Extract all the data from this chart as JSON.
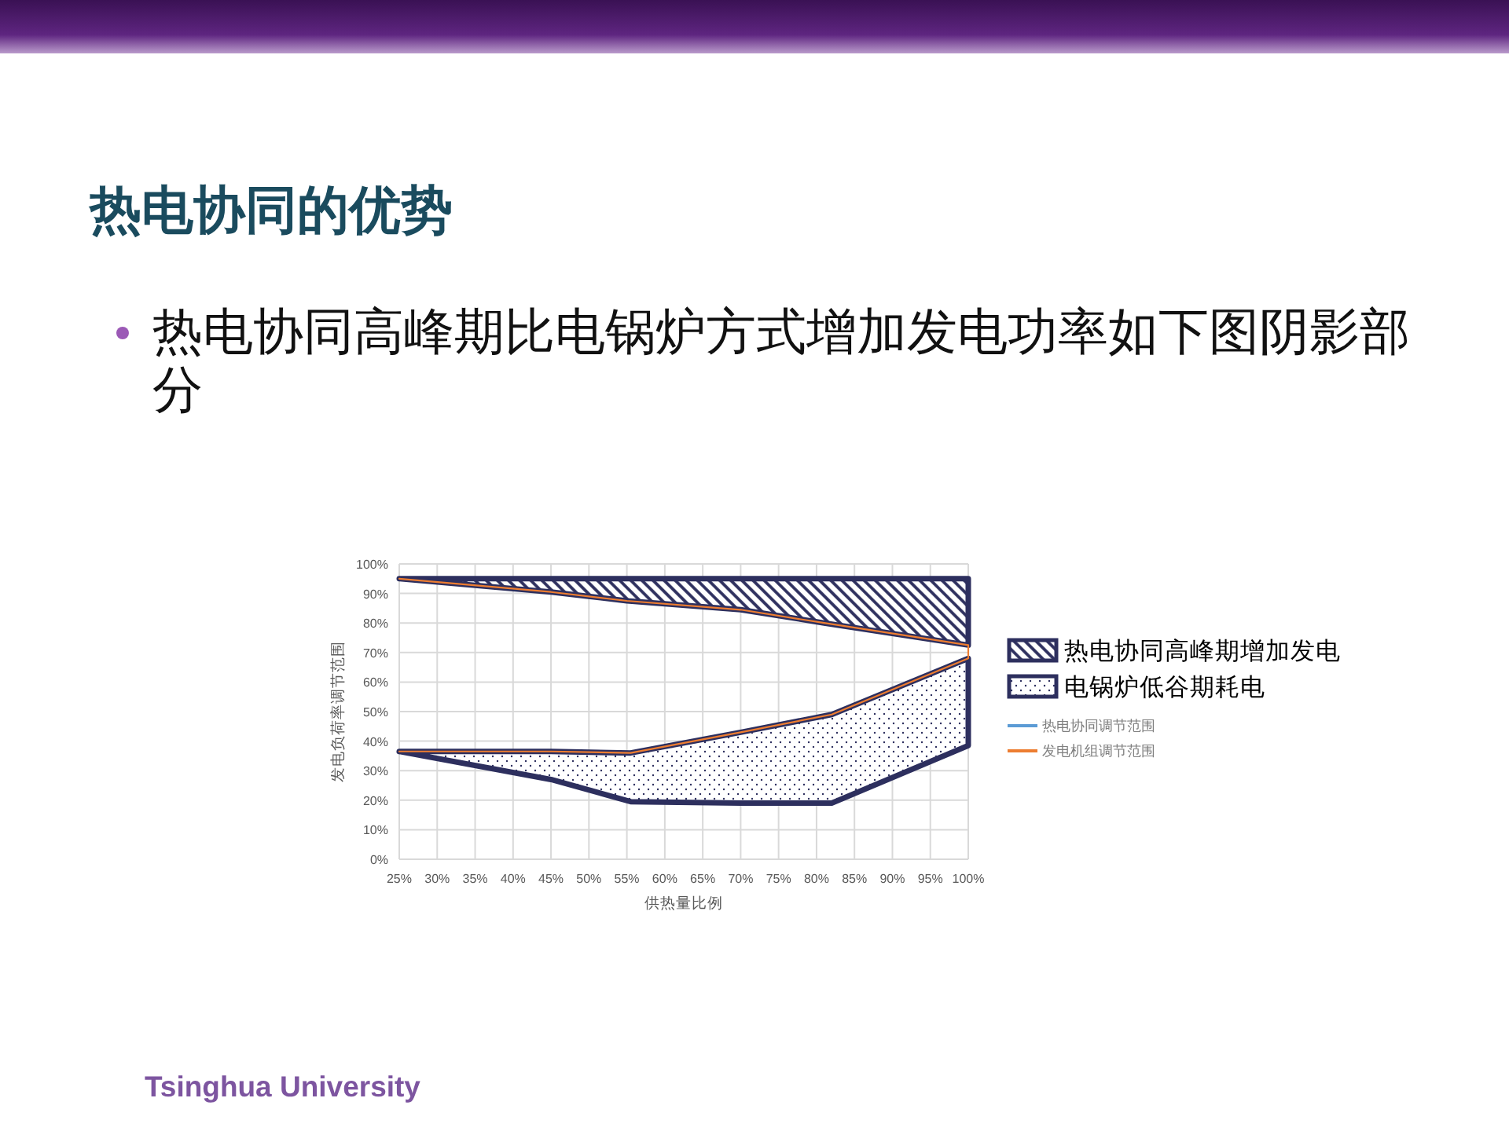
{
  "chart_data": {
    "type": "area",
    "title": "热电协同的优势",
    "subtitle": "热电协同高峰期比电锅炉方式增加发电功率如下图阴影部分",
    "xlabel": "供热量比例",
    "ylabel": "发电负荷率调节范围",
    "annotations": [
      "Tsinghua University"
    ],
    "series": [
      {
        "name": "热电协同高峰期增加发电",
        "color": "#2d2f5e",
        "x": [
          25,
          45,
          55,
          70,
          81,
          100
        ],
        "values": [
          null,
          null,
          null,
          null,
          null,
          null
        ],
        "upper": [
          95,
          95,
          95,
          95,
          95,
          95
        ],
        "lower": [
          95,
          90.5,
          87.5,
          84.5,
          80,
          72.5
        ]
      },
      {
        "name": "电锅炉低谷期耗电",
        "color": "#2d2f5e",
        "x": [
          25,
          45,
          55.5,
          70,
          82,
          100
        ],
        "values": [
          null,
          null,
          null,
          null,
          null,
          null
        ],
        "upper": [
          36.5,
          36.5,
          36,
          43,
          49,
          68
        ],
        "lower": [
          36.5,
          27,
          19.5,
          19,
          19,
          38.5
        ]
      },
      {
        "name": "热电协同调节范围",
        "type": "line",
        "color": "#5b9bd5",
        "values": [
          null
        ]
      },
      {
        "name": "发电机组调节范围",
        "type": "line",
        "color": "#ed7d31",
        "x": [
          25,
          45,
          55,
          70,
          81,
          100,
          100,
          82,
          70,
          55.5,
          45,
          25
        ],
        "values": [
          95,
          90.5,
          87.5,
          84.5,
          80,
          72.5,
          68,
          49,
          43,
          36,
          36.5,
          36.5
        ]
      }
    ],
    "xlim": [
      25,
      100
    ],
    "xticks": [
      {
        "value": 25,
        "label": "25%"
      },
      {
        "value": 30,
        "label": "30%"
      },
      {
        "value": 35,
        "label": "35%"
      },
      {
        "value": 40,
        "label": "40%"
      },
      {
        "value": 45,
        "label": "45%"
      },
      {
        "value": 50,
        "label": "50%"
      },
      {
        "value": 55,
        "label": "55%"
      },
      {
        "value": 60,
        "label": "60%"
      },
      {
        "value": 65,
        "label": "65%"
      },
      {
        "value": 70,
        "label": "70%"
      },
      {
        "value": 75,
        "label": "75%"
      },
      {
        "value": 80,
        "label": "80%"
      },
      {
        "value": 85,
        "label": "85%"
      },
      {
        "value": 90,
        "label": "90%"
      },
      {
        "value": 95,
        "label": "95%"
      },
      {
        "value": 100,
        "label": "100%"
      }
    ],
    "ylim": [
      0,
      100
    ],
    "yticks": [
      {
        "value": 0,
        "label": "0%"
      },
      {
        "value": 10,
        "label": "10%"
      },
      {
        "value": 20,
        "label": "20%"
      },
      {
        "value": 30,
        "label": "30%"
      },
      {
        "value": 40,
        "label": "40%"
      },
      {
        "value": 50,
        "label": "50%"
      },
      {
        "value": 60,
        "label": "60%"
      },
      {
        "value": 70,
        "label": "70%"
      },
      {
        "value": 80,
        "label": "80%"
      },
      {
        "value": 90,
        "label": "90%"
      },
      {
        "value": 100,
        "label": "100%"
      }
    ],
    "grid": true,
    "legend": "right"
  }
}
